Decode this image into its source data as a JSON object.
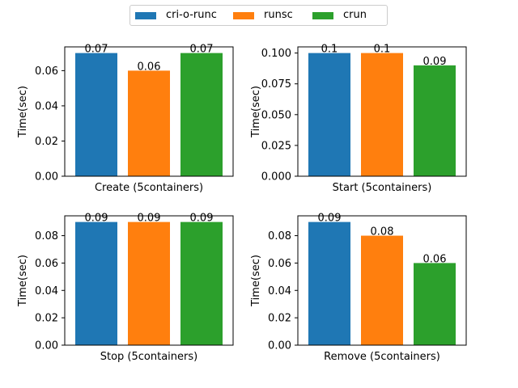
{
  "chart_data": {
    "type": "bar",
    "legend": {
      "placement": "top-center",
      "entries": [
        {
          "label": "cri-o-runc",
          "color": "#1f77b4"
        },
        {
          "label": "runsc",
          "color": "#ff7f0e"
        },
        {
          "label": "crun",
          "color": "#2ca02c"
        }
      ]
    },
    "panels": [
      {
        "xlabel": "Create (5containers)",
        "ylabel": "Time(sec)",
        "ylim": [
          0,
          0.0735
        ],
        "yticks": [
          "0.00",
          "0.02",
          "0.04",
          "0.06"
        ],
        "ytick_values": [
          0,
          0.02,
          0.04,
          0.06
        ],
        "values": [
          0.07,
          0.06,
          0.07
        ],
        "value_labels": [
          "0.07",
          "0.06",
          "0.07"
        ]
      },
      {
        "xlabel": "Start (5containers)",
        "ylabel": "Time(sec)",
        "ylim": [
          0,
          0.105
        ],
        "yticks": [
          "0.000",
          "0.025",
          "0.050",
          "0.075",
          "0.100"
        ],
        "ytick_values": [
          0,
          0.025,
          0.05,
          0.075,
          0.1
        ],
        "values": [
          0.1,
          0.1,
          0.09
        ],
        "value_labels": [
          "0.1",
          "0.1",
          "0.09"
        ]
      },
      {
        "xlabel": "Stop (5containers)",
        "ylabel": "Time(sec)",
        "ylim": [
          0,
          0.0945
        ],
        "yticks": [
          "0.00",
          "0.02",
          "0.04",
          "0.06",
          "0.08"
        ],
        "ytick_values": [
          0,
          0.02,
          0.04,
          0.06,
          0.08
        ],
        "values": [
          0.09,
          0.09,
          0.09
        ],
        "value_labels": [
          "0.09",
          "0.09",
          "0.09"
        ]
      },
      {
        "xlabel": "Remove (5containers)",
        "ylabel": "Time(sec)",
        "ylim": [
          0,
          0.0945
        ],
        "yticks": [
          "0.00",
          "0.02",
          "0.04",
          "0.06",
          "0.08"
        ],
        "ytick_values": [
          0,
          0.02,
          0.04,
          0.06,
          0.08
        ],
        "values": [
          0.09,
          0.08,
          0.06
        ],
        "value_labels": [
          "0.09",
          "0.08",
          "0.06"
        ]
      }
    ]
  }
}
